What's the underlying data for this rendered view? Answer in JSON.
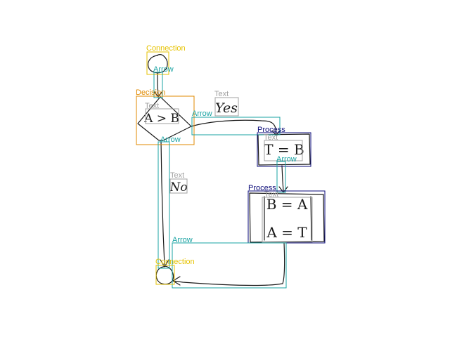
{
  "colors": {
    "connection": "#e6c200",
    "arrow": "#1aa3a3",
    "decision": "#e08a00",
    "process": "#0a0a78",
    "text": "#a0a0a0",
    "ink": "#1a1a1a"
  },
  "labels": {
    "connection_top": "Connection",
    "arrow_1": "Arrow",
    "decision": "Decision",
    "text_decision": "Text",
    "arrow_yes": "Arrow",
    "text_yes": "Text",
    "process_1": "Process",
    "text_process_1": "Text",
    "arrow_2": "Arrow",
    "arrow_no": "Arrow",
    "text_no": "Text",
    "process_2": "Process",
    "text_process_2": "Text",
    "arrow_3": "Arrow",
    "connection_bottom": "Connection"
  },
  "handwriting": {
    "condition": "A > B",
    "yes": "Yes",
    "no": "No",
    "step1": "T = B",
    "step2a": "B = A",
    "step2b": "A = T"
  }
}
